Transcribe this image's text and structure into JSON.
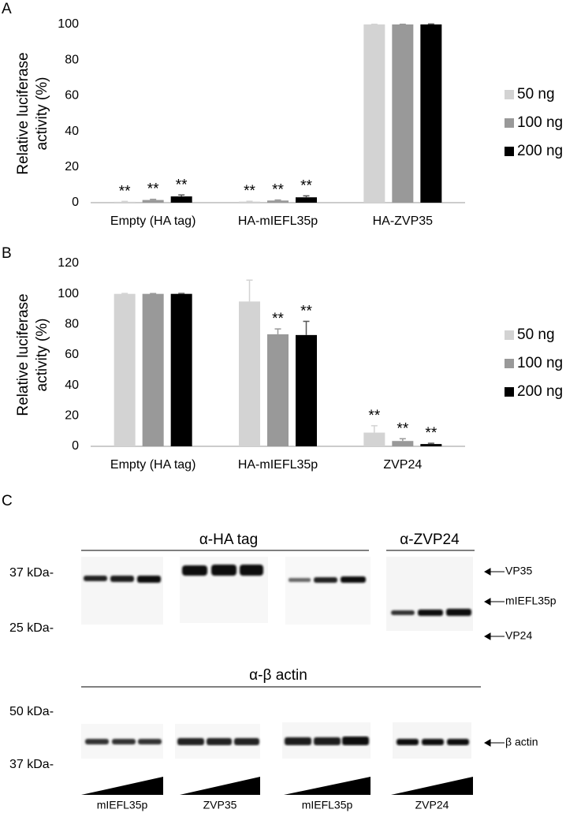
{
  "chart_data": [
    {
      "type": "bar",
      "panel": "A",
      "ylabel": [
        "Relative luciferase",
        "activity (%)"
      ],
      "categories": [
        "Empty (HA tag)",
        "HA-mIEFL35p",
        "HA-ZVP35"
      ],
      "series": [
        {
          "name": "50 ng",
          "color": "#d3d3d3",
          "values": [
            0.5,
            0.6,
            100
          ],
          "errors": [
            0.2,
            0.2,
            0.1
          ],
          "significance": [
            "**",
            "**",
            null
          ]
        },
        {
          "name": "100 ng",
          "color": "#999999",
          "values": [
            1.5,
            1.2,
            100
          ],
          "errors": [
            0.4,
            0.3,
            0.1
          ],
          "significance": [
            "**",
            "**",
            null
          ]
        },
        {
          "name": "200 ng",
          "color": "#000000",
          "values": [
            3.5,
            3,
            100
          ],
          "errors": [
            0.8,
            0.8,
            0.3
          ],
          "significance": [
            "**",
            "**",
            null
          ]
        }
      ],
      "ylim": [
        0,
        100
      ],
      "yticks": [
        0,
        20,
        40,
        60,
        80,
        100
      ],
      "grid": false,
      "legend": "right"
    },
    {
      "type": "bar",
      "panel": "B",
      "ylabel": [
        "Relative luciferase",
        "activity (%)"
      ],
      "categories": [
        "Empty (HA tag)",
        "HA-mIEFL35p",
        "ZVP24"
      ],
      "series": [
        {
          "name": "50 ng",
          "color": "#d3d3d3",
          "values": [
            100,
            95,
            9
          ],
          "errors": [
            0.3,
            14,
            4.5
          ],
          "significance": [
            null,
            null,
            "**"
          ]
        },
        {
          "name": "100 ng",
          "color": "#999999",
          "values": [
            100,
            73.5,
            3.5
          ],
          "errors": [
            0.2,
            3.5,
            1.5
          ],
          "significance": [
            null,
            "**",
            "**"
          ]
        },
        {
          "name": "200 ng",
          "color": "#000000",
          "values": [
            100,
            73,
            1.5
          ],
          "errors": [
            0.3,
            9,
            0.5
          ],
          "significance": [
            null,
            "**",
            "**"
          ]
        }
      ],
      "ylim": [
        0,
        120
      ],
      "yticks": [
        0,
        20,
        40,
        60,
        80,
        100,
        120
      ],
      "grid": false,
      "legend": "right"
    }
  ],
  "panel_c": {
    "label": "C",
    "ha_header": "α-HA tag",
    "zvp24_header": "α-ZVP24",
    "markers_top": [
      "37 kDa-",
      "25 kDa-"
    ],
    "arrows_top": [
      "VP35",
      "mIEFL35p",
      "VP24"
    ],
    "actin_header": "α-β actin",
    "markers_bottom": [
      "50 kDa-",
      "37 kDa-"
    ],
    "arrow_bottom": "β actin",
    "lanes": [
      "mIEFL35p",
      "ZVP35",
      "mIEFL35p",
      "ZVP24"
    ]
  }
}
